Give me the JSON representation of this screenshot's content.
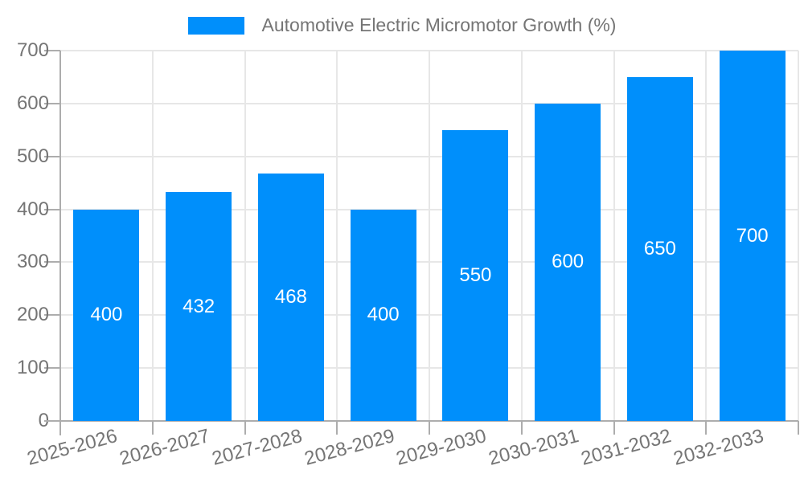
{
  "legend": {
    "label": "Automotive Electric Micromotor Growth (%)"
  },
  "chart_data": {
    "type": "bar",
    "title": "Automotive Electric Micromotor Growth (%)",
    "categories": [
      "2025-2026",
      "2026-2027",
      "2027-2028",
      "2028-2029",
      "2029-2030",
      "2030-2031",
      "2031-2032",
      "2032-2033"
    ],
    "values": [
      400,
      432,
      468,
      400,
      550,
      600,
      650,
      700
    ],
    "value_labels": [
      "400",
      "432",
      "468",
      "400",
      "550",
      "600",
      "650",
      "700"
    ],
    "xlabel": "",
    "ylabel": "",
    "ylim": [
      0,
      700
    ],
    "yticks": [
      0,
      100,
      200,
      300,
      400,
      500,
      600,
      700
    ],
    "grid": true,
    "legend_position": "top-center",
    "colors": {
      "bar": "#008FFB",
      "grid": "#e7e7e7",
      "axis": "#adadad",
      "label_text": "#757575",
      "value_label_text": "#ffffff",
      "background": "#ffffff"
    }
  }
}
